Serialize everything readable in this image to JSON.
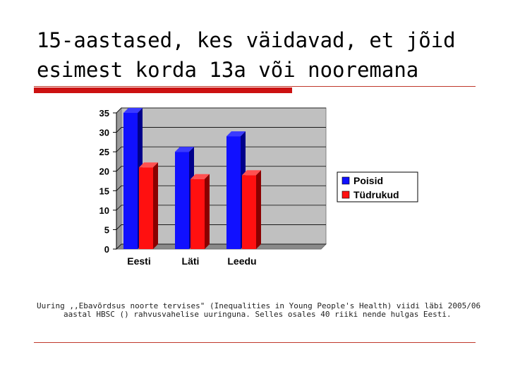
{
  "slide": {
    "title": "15-aastased, kes väidavad, et jõid esimest korda 13a või nooremana",
    "note": "Uuring ,,Ebavõrdsus noorte tervises\" (Inequalities in Young People's Health) viidi läbi 2005/06 aastal HBSC () rahvusvahelise uuringuna. Selles osales 40 riiki nende hulgas Eesti."
  },
  "colors": {
    "accent": "#cc1111",
    "poisid": "#1010ff",
    "tudrukud": "#ff1010"
  },
  "chart_data": {
    "type": "bar",
    "categories": [
      "Eesti",
      "Läti",
      "Leedu"
    ],
    "series": [
      {
        "name": "Poisid",
        "values": [
          35,
          25,
          29
        ]
      },
      {
        "name": "Tüdrukud",
        "values": [
          21,
          18,
          19
        ]
      }
    ],
    "yticks": [
      0,
      5,
      10,
      15,
      20,
      25,
      30,
      35
    ],
    "ylim": [
      0,
      35
    ],
    "grid": true,
    "legend": "right",
    "style": "3d"
  }
}
